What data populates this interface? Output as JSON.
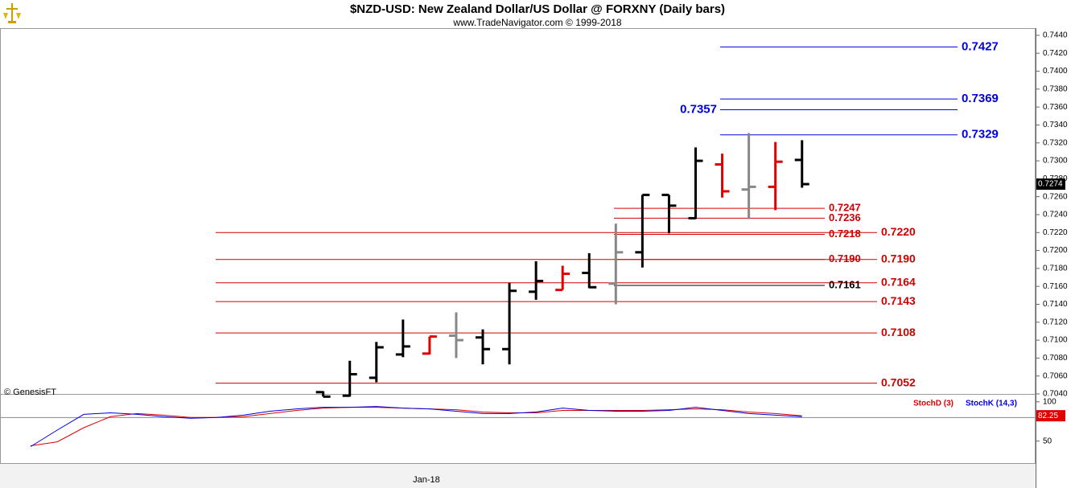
{
  "chart_data": [
    {
      "type": "ohlc",
      "title": "$NZD-USD:  New Zealand Dollar/US Dollar @ FORXNY  (Daily bars)",
      "subtitle": "www.TradeNavigator.com © 1999-2018",
      "source": "© GenesisFT",
      "categories": [
        null,
        null,
        null,
        null,
        null,
        null,
        null,
        null,
        null,
        null,
        null,
        null,
        null,
        null,
        null,
        "Jan-18",
        null,
        null,
        null,
        null,
        null,
        null,
        null,
        null,
        null,
        null,
        null,
        null,
        null,
        null
      ],
      "open": [
        null,
        null,
        null,
        null,
        null,
        null,
        null,
        null,
        null,
        null,
        null,
        0.7042,
        0.7038,
        0.7058,
        0.7084,
        0.7085,
        0.7105,
        0.7103,
        0.709,
        0.7154,
        0.7156,
        0.7175,
        0.7163,
        0.7198,
        0.7262,
        0.7236,
        0.7296,
        0.7268,
        0.7271,
        0.7301
      ],
      "high": [
        null,
        null,
        null,
        null,
        null,
        null,
        null,
        null,
        null,
        null,
        null,
        0.7043,
        0.7077,
        0.7098,
        0.7123,
        0.7104,
        0.7131,
        0.7112,
        0.7164,
        0.7188,
        0.7183,
        0.7197,
        0.723,
        0.7262,
        0.7262,
        0.7315,
        0.7308,
        0.7331,
        0.7321,
        0.7323
      ],
      "low": [
        null,
        null,
        null,
        null,
        null,
        null,
        null,
        null,
        null,
        null,
        null,
        0.7037,
        0.7037,
        0.7053,
        0.7081,
        0.7084,
        0.708,
        0.7073,
        0.7073,
        0.7145,
        0.7156,
        0.7158,
        0.714,
        0.7181,
        0.7219,
        0.7235,
        0.7259,
        0.7235,
        0.7245,
        0.727
      ],
      "close": [
        null,
        null,
        null,
        null,
        null,
        null,
        null,
        null,
        null,
        null,
        null,
        0.7037,
        0.7062,
        0.7092,
        0.7093,
        0.7104,
        0.71,
        0.709,
        0.7155,
        0.7166,
        0.7174,
        0.7159,
        0.7198,
        0.7262,
        0.725,
        0.73,
        0.7266,
        0.7271,
        0.7299,
        0.7274
      ],
      "last_label": "0.7274",
      "colors": [
        null,
        null,
        null,
        null,
        null,
        null,
        null,
        null,
        null,
        null,
        null,
        "#000000",
        "#000000",
        "#000000",
        "#000000",
        "#e00000",
        "#888888",
        "#000000",
        "#000000",
        "#000000",
        "#e00000",
        "#000000",
        "#888888",
        "#000000",
        "#000000",
        "#000000",
        "#e00000",
        "#888888",
        "#e00000",
        "#000000"
      ],
      "ylim": [
        0.704,
        0.7448
      ],
      "yticks": [
        {
          "value": 0.704,
          "label": "0.7040"
        },
        {
          "value": 0.706,
          "label": "0.7060"
        },
        {
          "value": 0.708,
          "label": "0.7080"
        },
        {
          "value": 0.71,
          "label": "0.7100"
        },
        {
          "value": 0.712,
          "label": "0.7120"
        },
        {
          "value": 0.714,
          "label": "0.7140"
        },
        {
          "value": 0.716,
          "label": "0.7160"
        },
        {
          "value": 0.718,
          "label": "0.7180"
        },
        {
          "value": 0.72,
          "label": "0.7200"
        },
        {
          "value": 0.722,
          "label": "0.7220"
        },
        {
          "value": 0.724,
          "label": "0.7240"
        },
        {
          "value": 0.726,
          "label": "0.7260"
        },
        {
          "value": 0.728,
          "label": "0.7280"
        },
        {
          "value": 0.73,
          "label": "0.7300"
        },
        {
          "value": 0.732,
          "label": "0.7320"
        },
        {
          "value": 0.734,
          "label": "0.7340"
        },
        {
          "value": 0.736,
          "label": "0.7360"
        },
        {
          "value": 0.738,
          "label": "0.7380"
        },
        {
          "value": 0.74,
          "label": "0.7400"
        },
        {
          "value": 0.742,
          "label": "0.7420"
        },
        {
          "value": 0.744,
          "label": "0.7440"
        }
      ],
      "upper_levels": [
        {
          "value": 0.7427,
          "label": "0.7427",
          "color": "#0000dd"
        },
        {
          "value": 0.7369,
          "label": "0.7369",
          "color": "#0000dd"
        },
        {
          "value": 0.7357,
          "label": "0.7357",
          "color": "#0000dd",
          "label_position": "left"
        },
        {
          "value": 0.7329,
          "label": "0.7329",
          "color": "#0000dd"
        }
      ],
      "lower_levels": [
        {
          "value": 0.722,
          "label": "0.7220",
          "color": "#d00000"
        },
        {
          "value": 0.719,
          "label": "0.7190",
          "color": "#d00000"
        },
        {
          "value": 0.7164,
          "label": "0.7164",
          "color": "#d00000"
        },
        {
          "value": 0.7143,
          "label": "0.7143",
          "color": "#d00000"
        },
        {
          "value": 0.7108,
          "label": "0.7108",
          "color": "#d00000"
        },
        {
          "value": 0.7052,
          "label": "0.7052",
          "color": "#d00000"
        }
      ],
      "near_levels": [
        {
          "value": 0.7247,
          "label": "0.7247",
          "color": "#d00000"
        },
        {
          "value": 0.7236,
          "label": "0.7236",
          "color": "#d00000"
        },
        {
          "value": 0.7218,
          "label": "0.7218",
          "color": "#d00000"
        },
        {
          "value": 0.719,
          "label": "0.7190",
          "color": "#d00000"
        },
        {
          "value": 0.7161,
          "label": "0.7161",
          "color": "#000000"
        }
      ]
    },
    {
      "type": "line",
      "series": [
        {
          "name": "StochD (3)",
          "color": "#e00000",
          "values": [
            44,
            49,
            67,
            81,
            85,
            83,
            80,
            80,
            81,
            85,
            89,
            92,
            93,
            93,
            92,
            91,
            90,
            87,
            86,
            86,
            89,
            89,
            89,
            89,
            90,
            91,
            90,
            87,
            85,
            82.25
          ]
        },
        {
          "name": "StochK (14,3)",
          "color": "#0000dd",
          "values": [
            43,
            64,
            84,
            86,
            84,
            81,
            79,
            80,
            83,
            88,
            91,
            93,
            93,
            94,
            92,
            91,
            88,
            85,
            85,
            87,
            92,
            89,
            88,
            88,
            89,
            93,
            89,
            85,
            83,
            81
          ]
        }
      ],
      "ylim": [
        21,
        110
      ],
      "yticks": [
        50,
        100
      ],
      "levels": [
        80
      ]
    }
  ]
}
